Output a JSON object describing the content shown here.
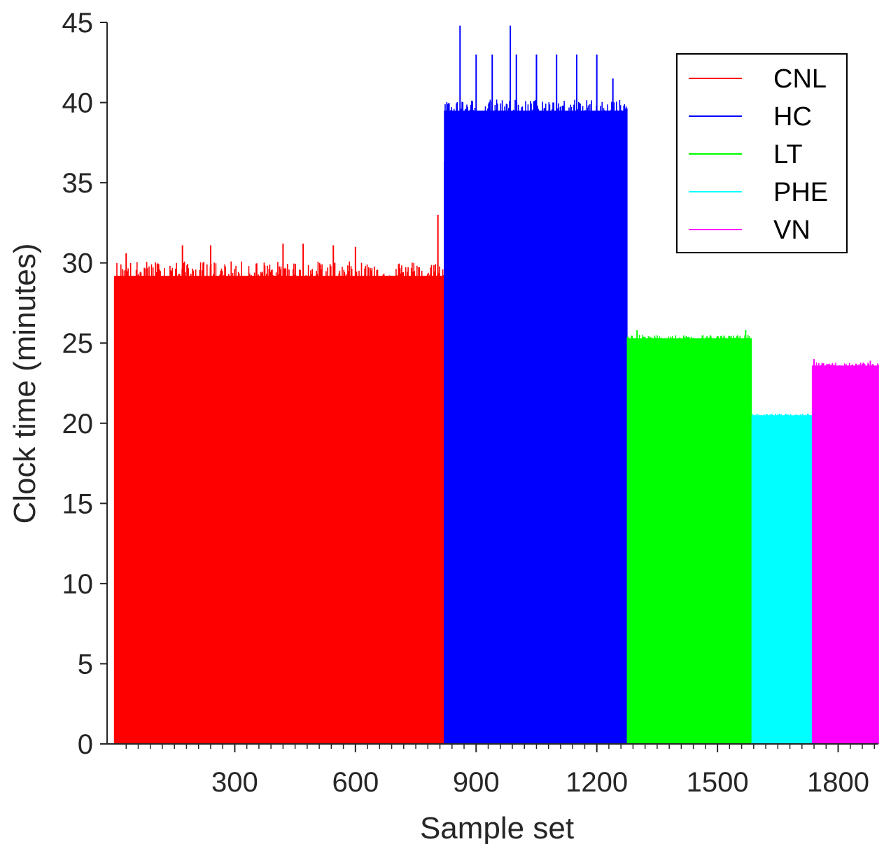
{
  "chart_data": {
    "type": "bar",
    "xlabel": "Sample set",
    "ylabel": "Clock time (minutes)",
    "xlim": [
      0,
      1900
    ],
    "ylim": [
      0,
      45
    ],
    "xticks": [
      300,
      600,
      900,
      1200,
      1500,
      1800
    ],
    "yticks": [
      0,
      5,
      10,
      15,
      20,
      25,
      30,
      35,
      40,
      45
    ],
    "grid": false,
    "legend_position": "top-right",
    "series": [
      {
        "name": "CNL",
        "color": "#ff0000",
        "x_range": [
          1,
          820
        ],
        "base_value": 29.2,
        "jitter_range": [
          28.6,
          30.1
        ],
        "spikes": [
          [
            30,
            30.6
          ],
          [
            170,
            31.1
          ],
          [
            240,
            31.1
          ],
          [
            420,
            31.2
          ],
          [
            470,
            31.2
          ],
          [
            545,
            31.1
          ],
          [
            600,
            31.0
          ],
          [
            805,
            33.0
          ]
        ]
      },
      {
        "name": "HC",
        "color": "#0000ff",
        "x_range": [
          821,
          1275
        ],
        "base_value": 39.5,
        "jitter_range": [
          36.0,
          40.2
        ],
        "spikes": [
          [
            860,
            44.8
          ],
          [
            900,
            43.0
          ],
          [
            940,
            43.0
          ],
          [
            985,
            44.8
          ],
          [
            1000,
            43.0
          ],
          [
            1050,
            43.0
          ],
          [
            1100,
            43.0
          ],
          [
            1150,
            43.0
          ],
          [
            1200,
            43.0
          ],
          [
            1240,
            41.5
          ]
        ]
      },
      {
        "name": "LT",
        "color": "#00ff00",
        "x_range": [
          1276,
          1585
        ],
        "base_value": 25.3,
        "jitter_range": [
          25.1,
          25.5
        ],
        "spikes": [
          [
            1300,
            25.8
          ],
          [
            1570,
            25.8
          ]
        ]
      },
      {
        "name": "PHE",
        "color": "#00ffff",
        "x_range": [
          1586,
          1735
        ],
        "base_value": 20.5,
        "jitter_range": [
          20.4,
          20.6
        ],
        "spikes": []
      },
      {
        "name": "VN",
        "color": "#ff00ff",
        "x_range": [
          1736,
          1900
        ],
        "base_value": 23.6,
        "jitter_range": [
          23.5,
          23.8
        ],
        "spikes": [
          [
            1740,
            24.0
          ],
          [
            1880,
            23.9
          ]
        ]
      }
    ]
  }
}
